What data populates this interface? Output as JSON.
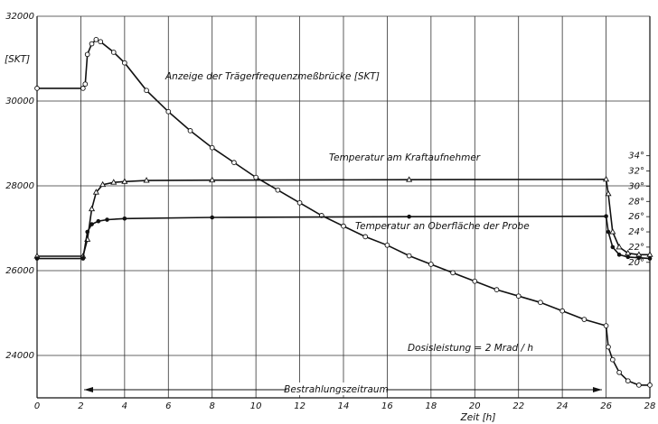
{
  "chart_data": {
    "type": "line",
    "title": "",
    "xlabel": "Zeit [h]",
    "ylabel": "[SKT]",
    "xlim": [
      0,
      28
    ],
    "ylim": [
      23000,
      32000
    ],
    "y2lim": [
      19.5,
      35.5
    ],
    "grid": true,
    "x_ticks": [
      "0",
      "2",
      "4",
      "6",
      "8",
      "10",
      "12",
      "14",
      "16",
      "18",
      "20",
      "22",
      "24",
      "26",
      "28"
    ],
    "y_ticks": [
      "24000",
      "26000",
      "28000",
      "30000",
      "32000"
    ],
    "y2_ticks": [
      "20°",
      "22°",
      "24°",
      "26°",
      "28°",
      "30°",
      "32°",
      "34°"
    ],
    "series": [
      {
        "name": "Anzeige der Trägerfrequenzmeßbrücke [SKT]",
        "axis": "left",
        "marker": "circle",
        "x": [
          0,
          2.1,
          2.2,
          2.3,
          2.5,
          2.7,
          2.9,
          3.5,
          4,
          5,
          6,
          7,
          8,
          9,
          10,
          11,
          12,
          13,
          14,
          15,
          16,
          17,
          18,
          19,
          20,
          21,
          22,
          23,
          24,
          25,
          26,
          26.1,
          26.3,
          26.6,
          27,
          27.5,
          28
        ],
        "y": [
          30300,
          30300,
          30400,
          31100,
          31350,
          31450,
          31400,
          31150,
          30900,
          30250,
          29750,
          29300,
          28900,
          28550,
          28200,
          27900,
          27600,
          27300,
          27050,
          26800,
          26600,
          26350,
          26150,
          25950,
          25750,
          25550,
          25400,
          25250,
          25050,
          24850,
          24700,
          24200,
          23900,
          23600,
          23400,
          23300,
          23300
        ]
      },
      {
        "name": "Temperatur am Kraftaufnehmer",
        "axis": "right",
        "marker": "triangle",
        "x": [
          0,
          2.1,
          2.3,
          2.5,
          2.7,
          3,
          3.5,
          4,
          5,
          8,
          17,
          26,
          26.1,
          26.3,
          26.6,
          27,
          27.5,
          28
        ],
        "y": [
          20.8,
          20.8,
          23,
          27,
          29.2,
          30.2,
          30.5,
          30.6,
          30.75,
          30.8,
          30.85,
          30.9,
          29,
          24,
          22,
          21.2,
          21,
          21
        ],
        "show_label": true
      },
      {
        "name": "Temperatur an Oberfläche der Probe",
        "axis": "right",
        "marker": "dot",
        "x": [
          0,
          2.1,
          2.3,
          2.5,
          2.8,
          3.2,
          4,
          8,
          17,
          26,
          26.1,
          26.3,
          26.6,
          27,
          27.5,
          28
        ],
        "y": [
          20.5,
          20.5,
          24,
          25,
          25.4,
          25.6,
          25.75,
          25.9,
          26.0,
          26.05,
          24,
          22,
          21,
          20.7,
          20.6,
          20.5
        ]
      }
    ],
    "annotations": {
      "dose": "Dosisleistung = 2 Mrad / h",
      "period": "Bestrahlungszeitraum"
    }
  }
}
